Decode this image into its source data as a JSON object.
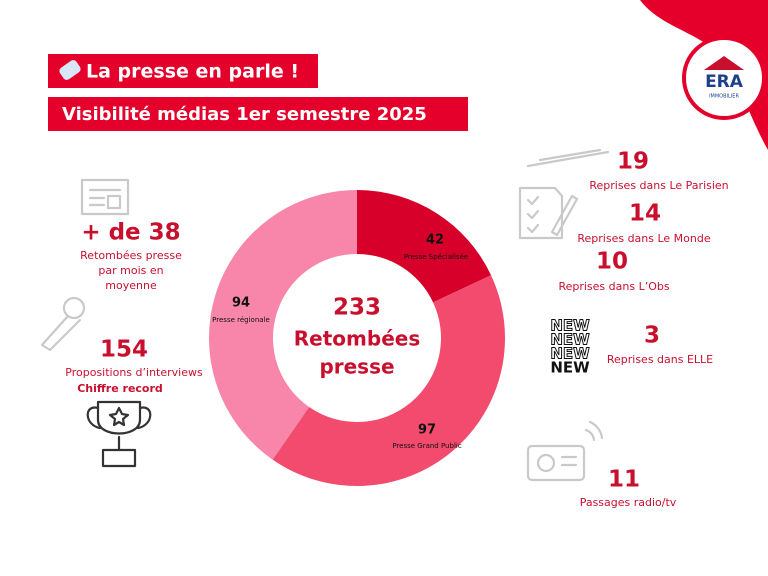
{
  "header": {
    "title": "La presse en parle !",
    "subtitle": "Visibilité médias 1er semestre 2025"
  },
  "logo": {
    "brand": "ERA",
    "tagline": "IMMOBILIER"
  },
  "chart_data": {
    "type": "donut",
    "categories": [
      "Presse Spécialisée",
      "Presse Grand Public",
      "Presse régionale"
    ],
    "values": [
      42,
      97,
      94
    ],
    "colors": [
      "#d7002b",
      "#f24b6d",
      "#f786aa"
    ],
    "center_value": 233,
    "center_label": [
      "Retombées",
      "presse"
    ]
  },
  "left_stats": [
    {
      "value": "+ de 38",
      "lines": [
        "Retombées presse",
        "par mois en",
        "moyenne"
      ]
    },
    {
      "value": 154,
      "lines": [
        "Propositions d’interviews"
      ],
      "note": "Chiffre record"
    }
  ],
  "right_stats": [
    {
      "value": 19,
      "label": "Reprises dans Le Parisien"
    },
    {
      "value": 14,
      "label": "Reprises dans Le Monde"
    },
    {
      "value": 10,
      "label": "Reprises dans L’Obs"
    },
    {
      "value": 3,
      "label": "Reprises dans ELLE"
    },
    {
      "value": 11,
      "label": "Passages radio/tv"
    }
  ],
  "new_icon": [
    "NEW",
    "NEW",
    "NEW",
    "NEW"
  ]
}
